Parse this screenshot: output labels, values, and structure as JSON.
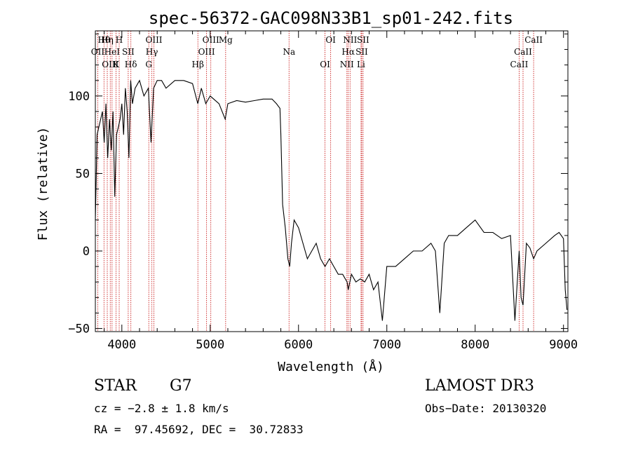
{
  "chart_data": {
    "type": "line",
    "title": "spec-56372-GAC098N33B1_sp01-242.fits",
    "xlabel": "Wavelength (Å)",
    "ylabel": "Flux (relative)",
    "xlim": [
      3700,
      9050
    ],
    "ylim": [
      -52,
      142
    ],
    "x_ticks": [
      4000,
      5000,
      6000,
      7000,
      8000,
      9000
    ],
    "y_ticks": [
      -50,
      0,
      50,
      100
    ],
    "x_tick_labels": [
      "4000",
      "5000",
      "6000",
      "7000",
      "8000",
      "9000"
    ],
    "y_tick_labels": [
      "−50",
      "0",
      "50",
      "100"
    ],
    "series": [
      {
        "color": "#000000",
        "x": [
          3700,
          3720,
          3740,
          3760,
          3780,
          3800,
          3820,
          3840,
          3860,
          3880,
          3900,
          3920,
          3940,
          3960,
          3980,
          4000,
          4020,
          4040,
          4060,
          4080,
          4100,
          4120,
          4150,
          4200,
          4250,
          4300,
          4330,
          4360,
          4400,
          4450,
          4500,
          4600,
          4700,
          4800,
          4860,
          4900,
          4950,
          5000,
          5100,
          5170,
          5200,
          5300,
          5400,
          5500,
          5600,
          5700,
          5750,
          5790,
          5800,
          5820,
          5850,
          5880,
          5900,
          5920,
          5950,
          6000,
          6050,
          6100,
          6150,
          6200,
          6250,
          6300,
          6350,
          6400,
          6450,
          6500,
          6550,
          6563,
          6600,
          6650,
          6700,
          6750,
          6800,
          6850,
          6900,
          6950,
          7000,
          7100,
          7200,
          7300,
          7400,
          7500,
          7550,
          7600,
          7650,
          7700,
          7800,
          7900,
          8000,
          8100,
          8200,
          8300,
          8400,
          8450,
          8498,
          8520,
          8542,
          8580,
          8620,
          8662,
          8700,
          8800,
          8900,
          8950,
          9000,
          9020,
          9040
        ],
        "y": [
          20,
          75,
          80,
          85,
          90,
          70,
          95,
          60,
          85,
          65,
          90,
          35,
          75,
          80,
          85,
          95,
          75,
          105,
          90,
          60,
          110,
          95,
          105,
          110,
          100,
          105,
          70,
          105,
          110,
          110,
          105,
          110,
          110,
          108,
          95,
          105,
          95,
          100,
          95,
          85,
          95,
          97,
          96,
          97,
          98,
          98,
          95,
          92,
          75,
          30,
          15,
          -5,
          -10,
          5,
          20,
          15,
          5,
          -5,
          0,
          5,
          -5,
          -10,
          -5,
          -10,
          -15,
          -15,
          -20,
          -25,
          -15,
          -20,
          -18,
          -20,
          -15,
          -25,
          -20,
          -45,
          -10,
          -10,
          -5,
          0,
          0,
          5,
          0,
          -40,
          5,
          10,
          10,
          15,
          20,
          12,
          12,
          8,
          10,
          -45,
          0,
          -30,
          -35,
          5,
          2,
          -5,
          0,
          5,
          10,
          12,
          8,
          -25,
          -38
        ]
      }
    ],
    "line_labels": [
      {
        "text": "Hθ",
        "wavelength": 3798
      },
      {
        "text": "OII",
        "wavelength": 3727
      },
      {
        "text": "OIII",
        "wavelength": 3869
      },
      {
        "text": "Hη",
        "wavelength": 3835
      },
      {
        "text": "HeI",
        "wavelength": 3889
      },
      {
        "text": "K",
        "wavelength": 3934
      },
      {
        "text": "H",
        "wavelength": 3970
      },
      {
        "text": "SII",
        "wavelength": 4072
      },
      {
        "text": "Hδ",
        "wavelength": 4102
      },
      {
        "text": "OIII",
        "wavelength": 4363
      },
      {
        "text": "Hγ",
        "wavelength": 4340
      },
      {
        "text": "G",
        "wavelength": 4305
      },
      {
        "text": "OIII",
        "wavelength": 5007
      },
      {
        "text": "OIII",
        "wavelength": 4959
      },
      {
        "text": "Hβ",
        "wavelength": 4861
      },
      {
        "text": "Mg",
        "wavelength": 5175
      },
      {
        "text": "Na",
        "wavelength": 5893
      },
      {
        "text": "OI",
        "wavelength": 6300
      },
      {
        "text": "OI",
        "wavelength": 6364
      },
      {
        "text": "Hα",
        "wavelength": 6563
      },
      {
        "text": "NII",
        "wavelength": 6548
      },
      {
        "text": "NII",
        "wavelength": 6584
      },
      {
        "text": "SII",
        "wavelength": 6716
      },
      {
        "text": "Li",
        "wavelength": 6708
      },
      {
        "text": "SII",
        "wavelength": 6731
      },
      {
        "text": "CaII",
        "wavelength": 8542
      },
      {
        "text": "CaII",
        "wavelength": 8498
      },
      {
        "text": "CaII",
        "wavelength": 8662
      }
    ],
    "marker_color": "#cc2222",
    "grid": false
  },
  "info": {
    "object_class": "STAR",
    "subclass": "G7",
    "survey": "LAMOST DR3",
    "redshift_line": "cz = −2.8 ± 1.8 km/s",
    "obs_date_line": "Obs−Date: 20130320",
    "coords_line": "RA =  97.45692, DEC =  30.72833"
  }
}
